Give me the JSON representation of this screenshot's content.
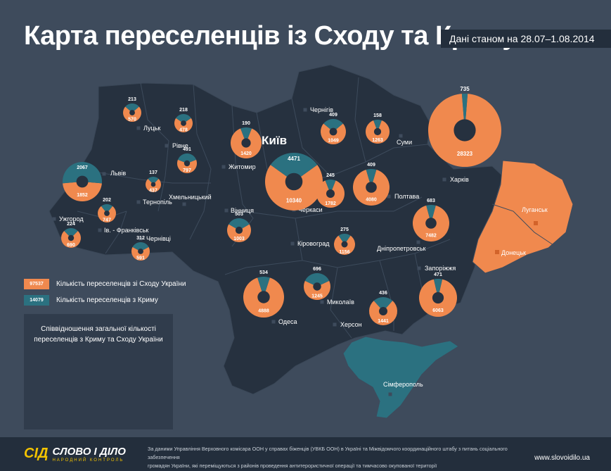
{
  "title": "Карта переселенців із Сходу та Криму",
  "date_note": "Дані станом на 28.07–1.08.2014",
  "colors": {
    "east": "#f0894e",
    "crimea": "#2b7180",
    "background": "#3e4b5c",
    "map_fill": "#26313f",
    "conflict_zone": "#f0894e",
    "crimea_fill": "#2b7180"
  },
  "legend": {
    "east_value": "97537",
    "east_label": "Кількість переселенців зі Сходу України",
    "crimea_value": "14079",
    "crimea_label": "Кількість переселенців з Криму"
  },
  "ratio_panel": {
    "title_line1": "Співвідношення загальної кількості",
    "title_line2": "переселенців з Криму та Сходу України"
  },
  "map_labels": [
    {
      "id": "lutsk",
      "name": "Луцьк"
    },
    {
      "id": "rivne",
      "name": "Рівне"
    },
    {
      "id": "lviv",
      "name": "Львів"
    },
    {
      "id": "ternopil",
      "name": "Тернопіль"
    },
    {
      "id": "khmelnytskyi",
      "name": "Хмельницький"
    },
    {
      "id": "uzhhorod",
      "name": "Ужгород"
    },
    {
      "id": "ivano-frankivsk",
      "name": "Ів. - Франківськ"
    },
    {
      "id": "chernivtsi",
      "name": "Чернівці"
    },
    {
      "id": "zhytomyr",
      "name": "Житомир"
    },
    {
      "id": "kyiv",
      "name": "Київ"
    },
    {
      "id": "vinnytsia",
      "name": "Вінниця"
    },
    {
      "id": "chernihiv",
      "name": "Чернігів"
    },
    {
      "id": "sumy",
      "name": "Суми"
    },
    {
      "id": "kharkiv",
      "name": "Харків"
    },
    {
      "id": "poltava",
      "name": "Полтава"
    },
    {
      "id": "cherkasy",
      "name": "Черкаси"
    },
    {
      "id": "kirovohrad",
      "name": "Кіровоград"
    },
    {
      "id": "dnipropetrovsk",
      "name": "Дніпропетровськ"
    },
    {
      "id": "luhansk",
      "name": "Луганськ"
    },
    {
      "id": "donetsk",
      "name": "Донецьк"
    },
    {
      "id": "zaporizhzhia",
      "name": "Запоріжжя"
    },
    {
      "id": "odesa",
      "name": "Одеса"
    },
    {
      "id": "mykolaiv",
      "name": "Миколаїв"
    },
    {
      "id": "kherson",
      "name": "Херсон"
    },
    {
      "id": "simferopol",
      "name": "Сімферополь"
    }
  ],
  "chart_data": [
    {
      "type": "pie",
      "description": "Donut charts per region: displaced persons from the East and from Crimea",
      "series_names": [
        "Кількість переселенців зі Сходу України",
        "Кількість переселенців з Криму"
      ],
      "regions": [
        {
          "id": "volyn",
          "east": 570,
          "crimea": 213
        },
        {
          "id": "rivne",
          "east": 478,
          "crimea": 218
        },
        {
          "id": "lviv",
          "east": 1852,
          "crimea": 2067
        },
        {
          "id": "ternopil",
          "east": 437,
          "crimea": 137
        },
        {
          "id": "khmelnytskyi",
          "east": 797,
          "crimea": 491
        },
        {
          "id": "ivano-frankivsk",
          "east": 747,
          "crimea": 202
        },
        {
          "id": "zakarpattia",
          "east": 690,
          "crimea": 224
        },
        {
          "id": "chernivtsi",
          "east": 591,
          "crimea": 312
        },
        {
          "id": "zhytomyr",
          "east": 1420,
          "crimea": 190
        },
        {
          "id": "kyiv",
          "east": 10340,
          "crimea": 4471
        },
        {
          "id": "vinnytsia",
          "east": 1003,
          "crimea": 503
        },
        {
          "id": "chernihiv",
          "east": 1049,
          "crimea": 409
        },
        {
          "id": "sumy",
          "east": 1263,
          "crimea": 158
        },
        {
          "id": "cherkasy",
          "east": 1782,
          "crimea": 245
        },
        {
          "id": "poltava",
          "east": 4080,
          "crimea": 409
        },
        {
          "id": "kharkiv",
          "east": 28323,
          "crimea": 735
        },
        {
          "id": "kirovohrad",
          "east": 1156,
          "crimea": 275
        },
        {
          "id": "dnipropetrovsk",
          "east": 7482,
          "crimea": 683
        },
        {
          "id": "odesa",
          "east": 4888,
          "crimea": 534
        },
        {
          "id": "mykolaiv",
          "east": 1245,
          "crimea": 696
        },
        {
          "id": "kherson",
          "east": 1441,
          "crimea": 436
        },
        {
          "id": "zaporizhzhia",
          "east": 6063,
          "crimea": 471
        }
      ]
    },
    {
      "type": "pie",
      "title": "Співвідношення загальної кількості переселенців з Криму та Сходу України",
      "slices": [
        {
          "name": "Схід",
          "value": 97537
        },
        {
          "name": "Крим",
          "value": 14079
        }
      ]
    }
  ],
  "footer": {
    "logo_mark": "СІД",
    "logo_name": "СЛОВО І ДІЛО",
    "logo_sub": "НАРОДНИЙ КОНТРОЛЬ",
    "source_line1": "За даними  Управління Верховного комісара ООН у справах біженців (УВКБ ООН) в Україні та Міжвідомчого координаційного штабу з питань соціального забезпечення",
    "source_line2": "громадян України, які переміщуються з районів проведення антитерористичної операції та тимчасово окупованої території",
    "site": "www.slovoidilo.ua"
  }
}
